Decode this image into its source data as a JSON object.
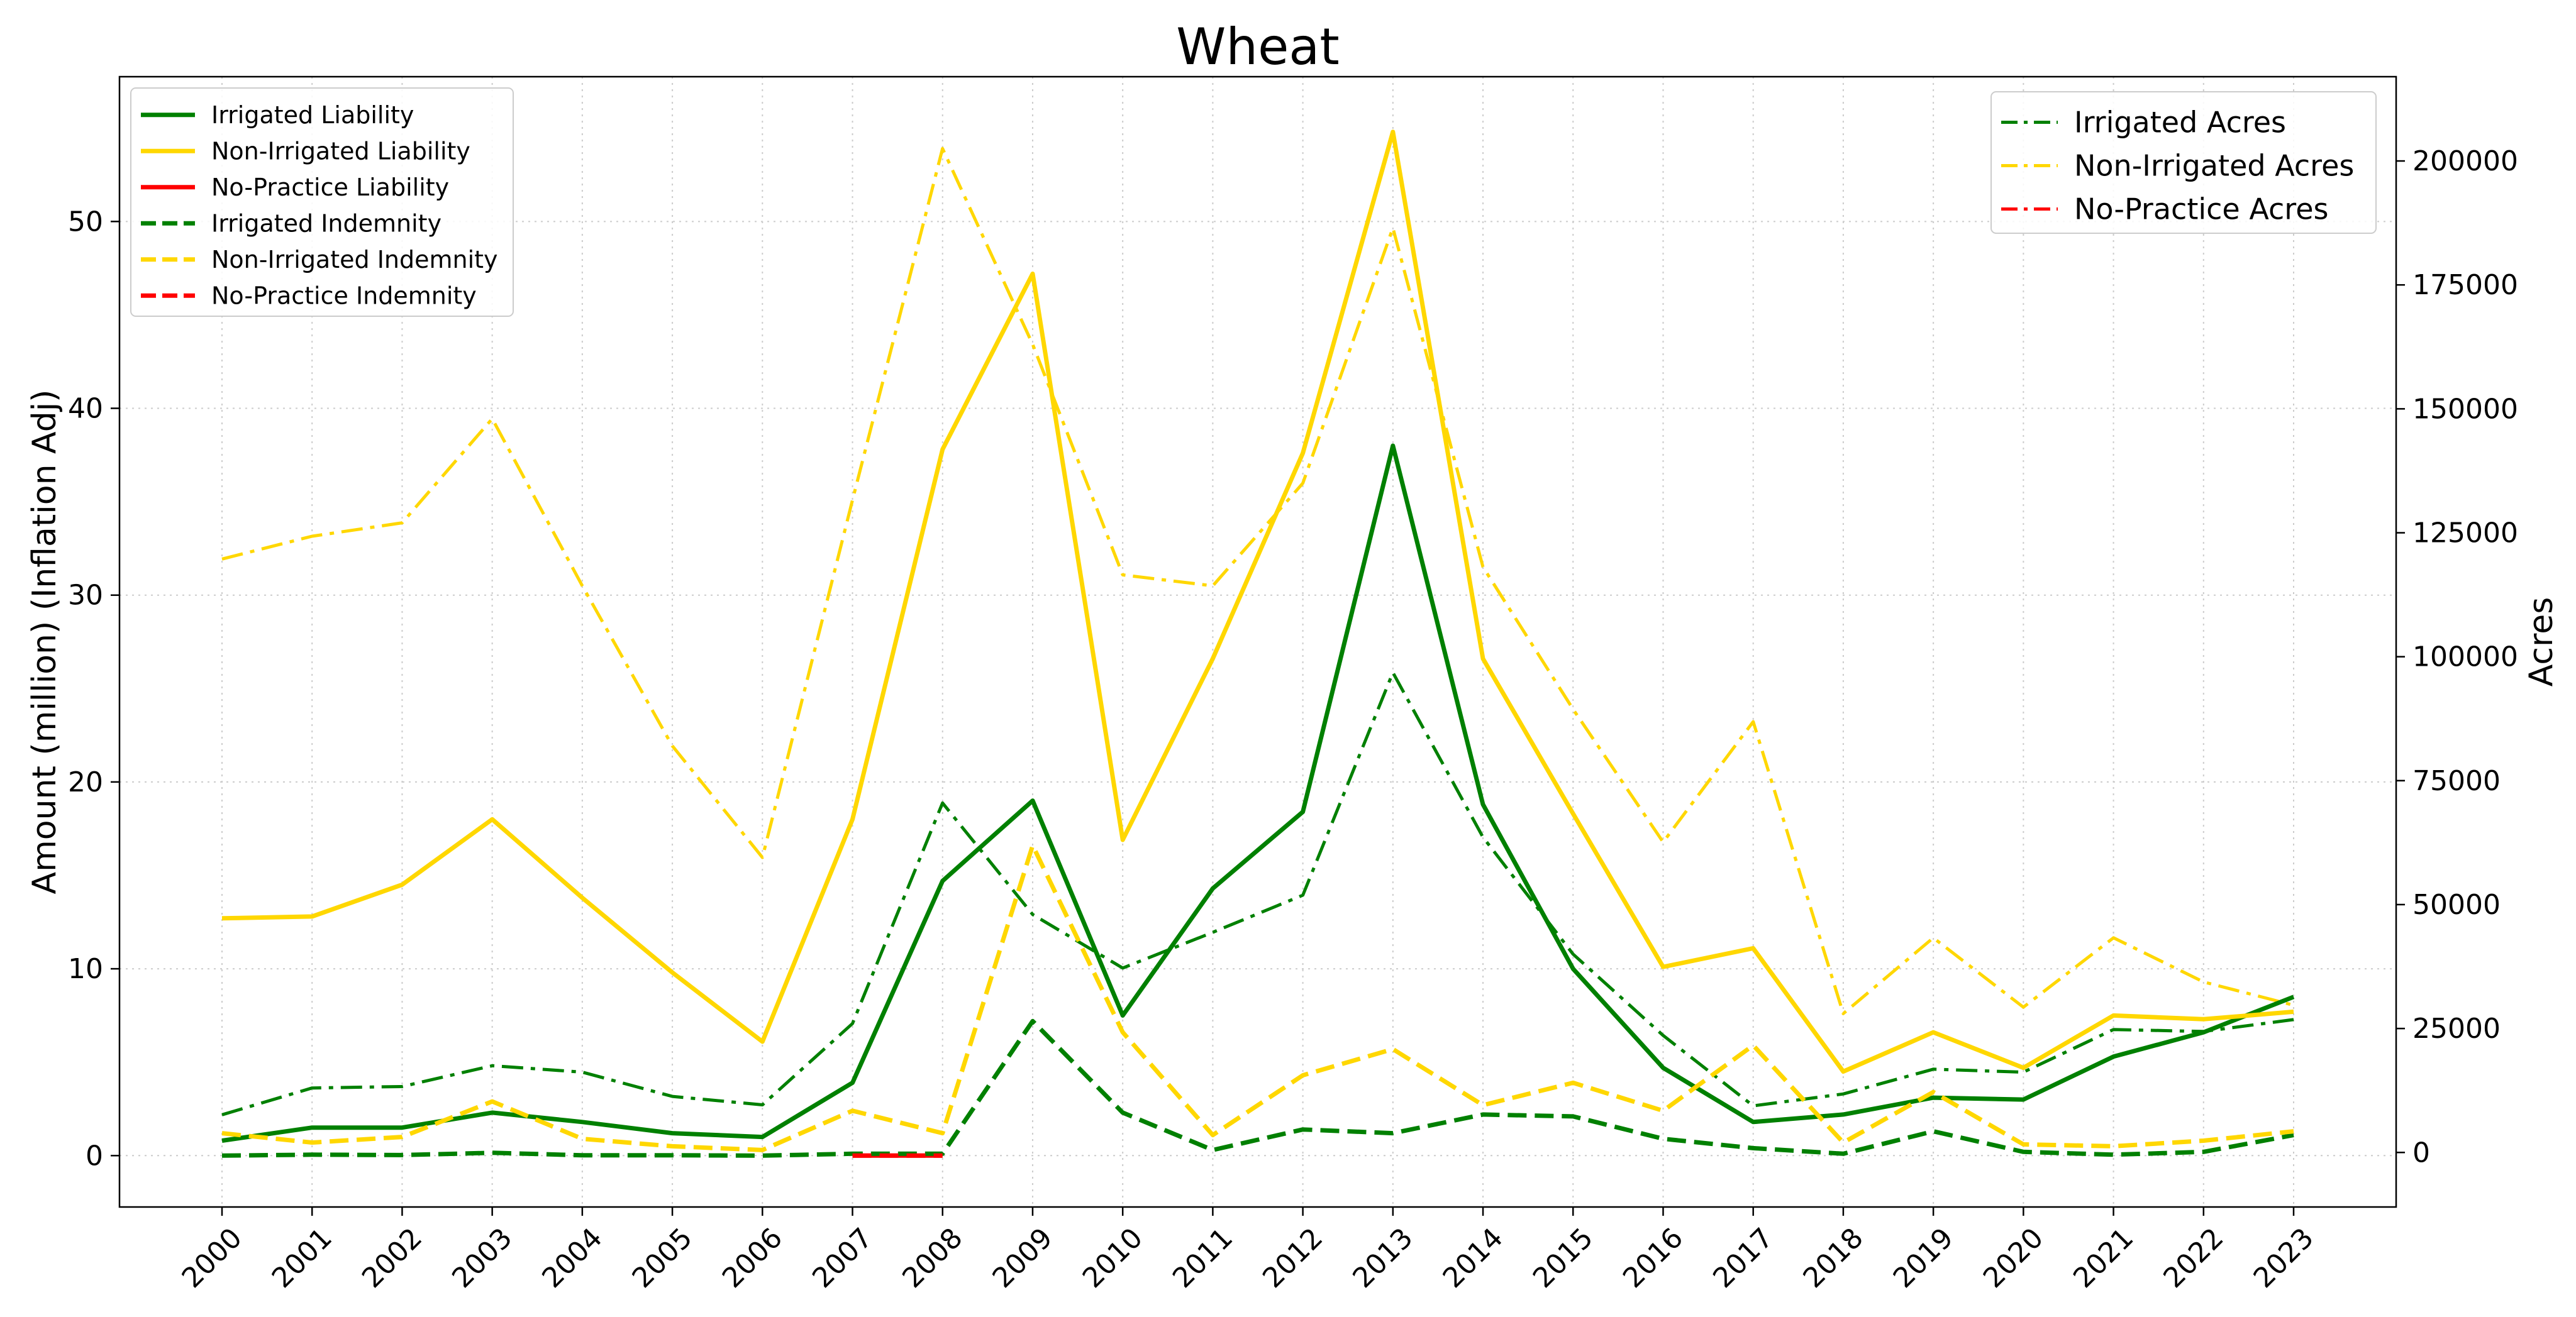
{
  "chart_data": {
    "type": "line",
    "title": "Wheat",
    "xlabel": "",
    "ylabel": "Amount (million) (Inflation Adj)",
    "y2label": "Acres",
    "ylim": [
      -2.75,
      57.75
    ],
    "y2lim": [
      -11000,
      217000
    ],
    "yticks": [
      0,
      10,
      20,
      30,
      40,
      50
    ],
    "y2ticks": [
      0,
      25000,
      50000,
      75000,
      100000,
      125000,
      150000,
      175000,
      200000
    ],
    "grid": true,
    "legend_left": "top-left",
    "legend_right": "top-right",
    "x": [
      "2000",
      "2001",
      "2002",
      "2003",
      "2004",
      "2005",
      "2006",
      "2007",
      "2008",
      "2009",
      "2010",
      "2011",
      "2012",
      "2013",
      "2014",
      "2015",
      "2016",
      "2017",
      "2018",
      "2019",
      "2020",
      "2021",
      "2022",
      "2023"
    ],
    "series": [
      {
        "name": "Irrigated Liability",
        "axis": "left",
        "style": "solid",
        "color": "#008000",
        "values": [
          0.8,
          1.5,
          1.5,
          2.3,
          1.8,
          1.2,
          1.0,
          3.9,
          14.7,
          19.0,
          7.5,
          14.3,
          18.4,
          38.0,
          18.8,
          10.0,
          4.7,
          1.8,
          2.2,
          3.1,
          3.0,
          5.3,
          6.6,
          8.5
        ]
      },
      {
        "name": "Non-Irrigated Liability",
        "axis": "left",
        "style": "solid",
        "color": "#FFD700",
        "values": [
          12.7,
          12.8,
          14.5,
          18.0,
          13.8,
          9.8,
          6.1,
          18.0,
          37.8,
          47.2,
          16.9,
          26.6,
          37.6,
          54.8,
          26.6,
          18.3,
          10.1,
          11.1,
          4.5,
          6.6,
          4.7,
          7.5,
          7.3,
          7.7
        ]
      },
      {
        "name": "No-Practice Liability",
        "axis": "left",
        "style": "solid",
        "color": "#FF0000",
        "values": [
          null,
          null,
          null,
          null,
          null,
          null,
          null,
          0.0,
          0.0,
          null,
          null,
          null,
          null,
          null,
          null,
          null,
          null,
          null,
          null,
          null,
          null,
          null,
          null,
          null
        ]
      },
      {
        "name": "Irrigated Indemnity",
        "axis": "left",
        "style": "dashed",
        "color": "#008000",
        "values": [
          0.0,
          0.05,
          0.03,
          0.15,
          0.02,
          0.02,
          0.0,
          0.1,
          0.1,
          7.2,
          2.3,
          0.3,
          1.4,
          1.2,
          2.2,
          2.1,
          0.9,
          0.4,
          0.1,
          1.3,
          0.2,
          0.05,
          0.2,
          1.1
        ]
      },
      {
        "name": "Non-Irrigated Indemnity",
        "axis": "left",
        "style": "dashed",
        "color": "#FFD700",
        "values": [
          1.2,
          0.7,
          1.0,
          2.9,
          0.9,
          0.5,
          0.3,
          2.4,
          1.2,
          16.6,
          6.6,
          1.1,
          4.3,
          5.7,
          2.7,
          3.9,
          2.4,
          5.9,
          0.7,
          3.4,
          0.6,
          0.5,
          0.8,
          1.3
        ]
      },
      {
        "name": "No-Practice Indemnity",
        "axis": "left",
        "style": "dashed",
        "color": "#FF0000",
        "values": [
          null,
          null,
          null,
          null,
          null,
          null,
          null,
          0.0,
          0.0,
          null,
          null,
          null,
          null,
          null,
          null,
          null,
          null,
          null,
          null,
          null,
          null,
          null,
          null,
          null
        ]
      },
      {
        "name": "Irrigated Acres",
        "axis": "right",
        "style": "dashdot",
        "color": "#008000",
        "values": [
          7600,
          13000,
          13300,
          17500,
          16200,
          11300,
          9600,
          26000,
          70500,
          48000,
          37200,
          44400,
          51900,
          96800,
          63600,
          40000,
          23600,
          9400,
          11800,
          16800,
          16200,
          24800,
          24400,
          26800
        ]
      },
      {
        "name": "Non-Irrigated Acres",
        "axis": "right",
        "style": "dashdot",
        "color": "#FFD700",
        "values": [
          119700,
          124300,
          127000,
          148000,
          114300,
          82000,
          59500,
          131600,
          202500,
          163000,
          116500,
          114300,
          135000,
          186500,
          118100,
          89400,
          62600,
          86900,
          28000,
          43300,
          29300,
          43300,
          34400,
          29700
        ]
      },
      {
        "name": "No-Practice Acres",
        "axis": "right",
        "style": "dashdot",
        "color": "#FF0000",
        "values": [
          null,
          null,
          null,
          null,
          null,
          null,
          null,
          null,
          null,
          null,
          null,
          null,
          null,
          null,
          null,
          null,
          null,
          null,
          null,
          null,
          null,
          null,
          null,
          null
        ]
      }
    ]
  }
}
